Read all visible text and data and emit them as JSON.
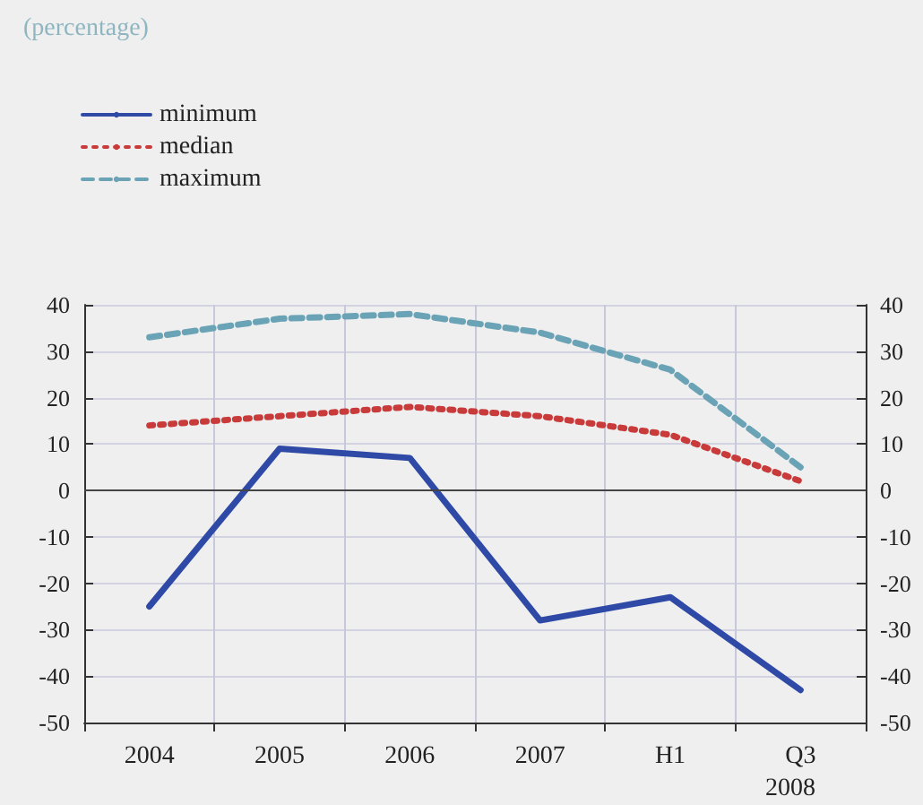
{
  "chart_data": {
    "type": "line",
    "subtitle": "(percentage)",
    "categories": [
      "2004",
      "2005",
      "2006",
      "2007",
      "H1",
      "Q3"
    ],
    "series": [
      {
        "name": "minimum",
        "color": "#2f4aa6",
        "line_style": "solid",
        "values": [
          -25,
          9,
          7,
          -28,
          -23,
          -43
        ]
      },
      {
        "name": "median",
        "color": "#c93a3a",
        "line_style": "dotted",
        "values": [
          14,
          16,
          18,
          16,
          12,
          2
        ]
      },
      {
        "name": "maximum",
        "color": "#6aa3b5",
        "line_style": "dashed",
        "values": [
          33,
          37,
          38,
          34,
          26,
          5
        ]
      }
    ],
    "ylim": [
      -50,
      40
    ],
    "yticks": [
      -50,
      -40,
      -30,
      -20,
      -10,
      0,
      10,
      20,
      30,
      40
    ],
    "y2lim": [
      -50,
      40
    ],
    "y2ticks": [
      -50,
      -40,
      -30,
      -20,
      -10,
      0,
      10,
      20,
      30,
      40
    ],
    "annotations": [
      "2008"
    ],
    "grid": true,
    "legend": "top left",
    "marker": "none"
  }
}
